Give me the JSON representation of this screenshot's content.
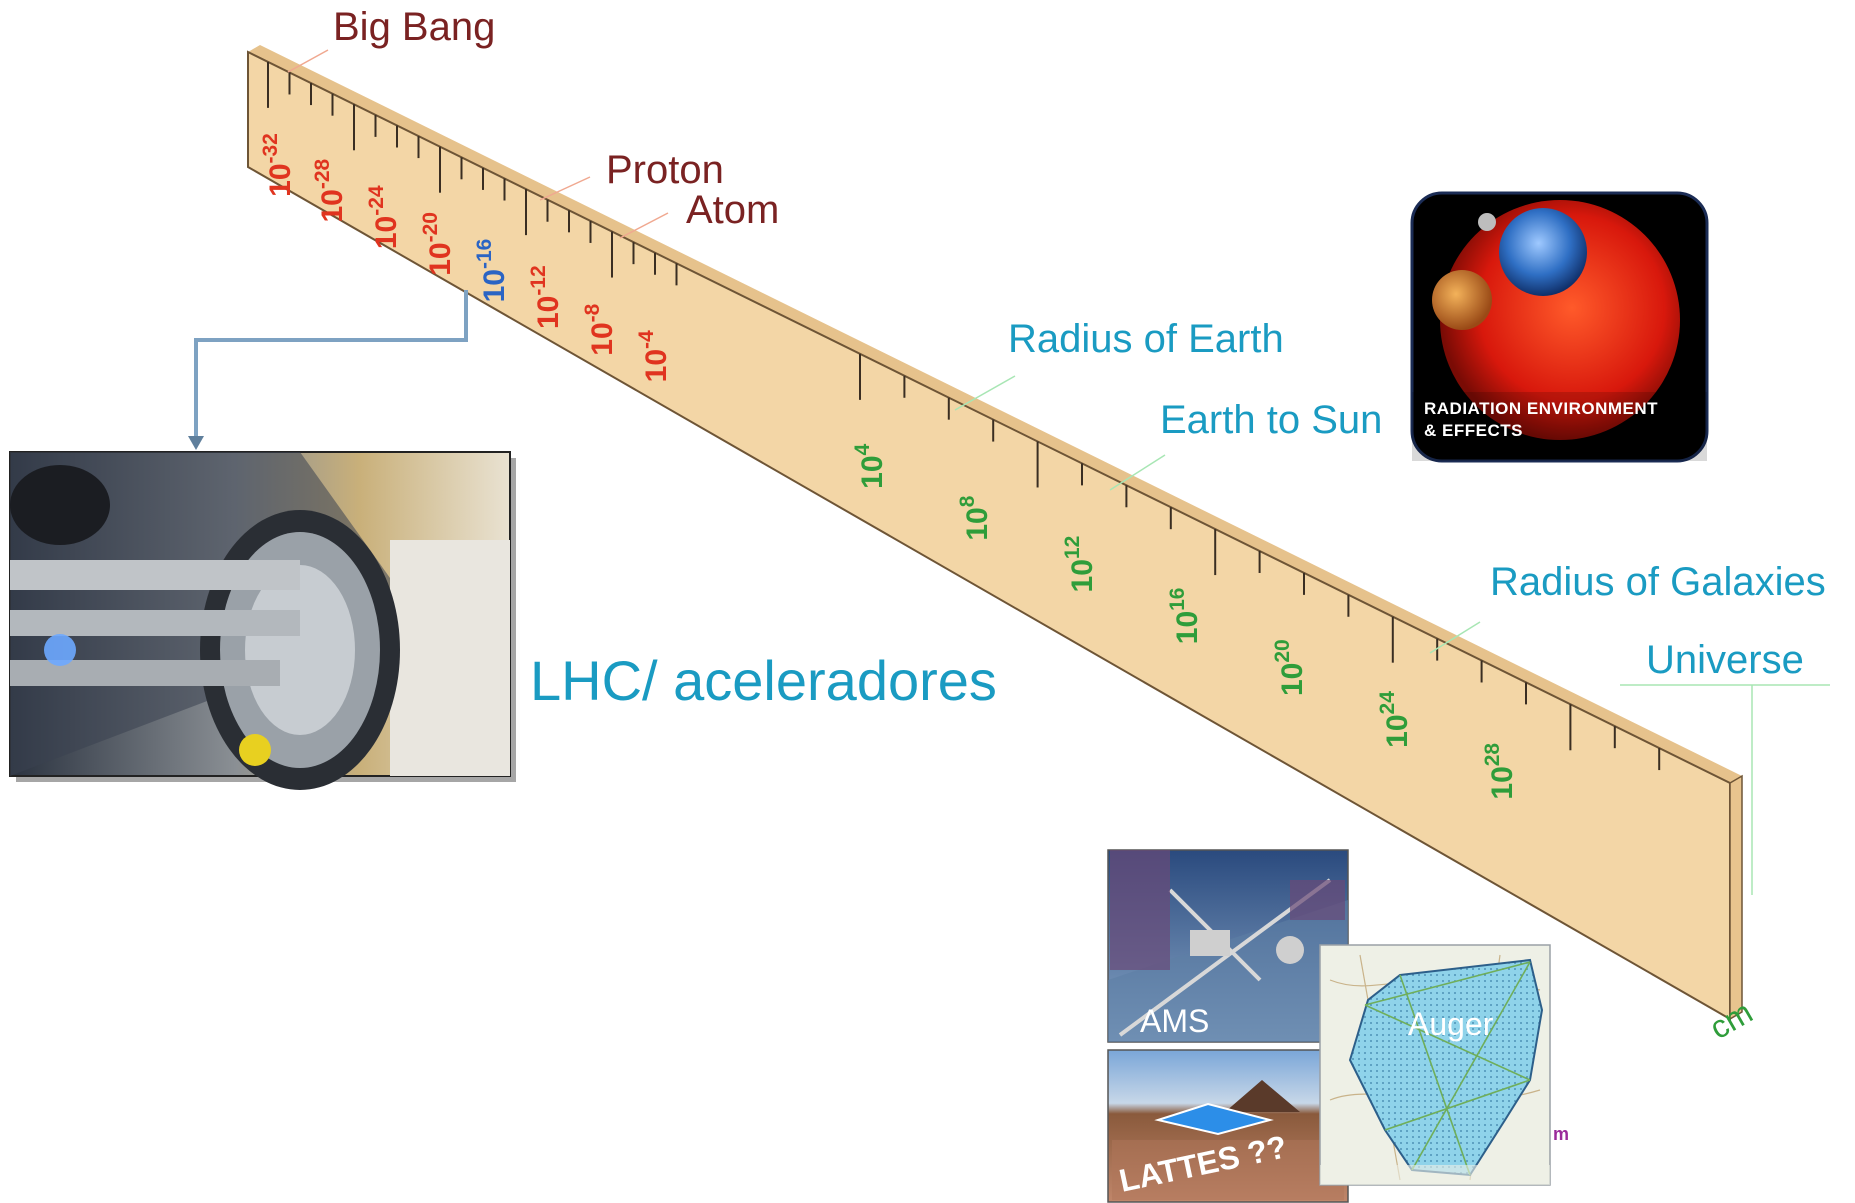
{
  "ruler": {
    "ticks": [
      {
        "base": "10",
        "exp": "-32",
        "color": "red"
      },
      {
        "base": "10",
        "exp": "-28",
        "color": "red"
      },
      {
        "base": "10",
        "exp": "-24",
        "color": "red"
      },
      {
        "base": "10",
        "exp": "-20",
        "color": "red"
      },
      {
        "base": "10",
        "exp": "-16",
        "color": "blue"
      },
      {
        "base": "10",
        "exp": "-12",
        "color": "red"
      },
      {
        "base": "10",
        "exp": "-8",
        "color": "red"
      },
      {
        "base": "10",
        "exp": "-4",
        "color": "red"
      },
      {
        "base": "10",
        "exp": "4",
        "color": "green"
      },
      {
        "base": "10",
        "exp": "8",
        "color": "green"
      },
      {
        "base": "10",
        "exp": "12",
        "color": "green"
      },
      {
        "base": "10",
        "exp": "16",
        "color": "green"
      },
      {
        "base": "10",
        "exp": "20",
        "color": "green"
      },
      {
        "base": "10",
        "exp": "24",
        "color": "green"
      },
      {
        "base": "10",
        "exp": "28",
        "color": "green"
      }
    ],
    "unit": "cm",
    "face_color": "#f3d6a6",
    "edge_color": "#d9b683"
  },
  "annotations": {
    "big_bang": "Big Bang",
    "proton": "Proton",
    "atom": "Atom",
    "radius_earth": "Radius of Earth",
    "earth_sun": "Earth to Sun",
    "radius_galaxies": "Radius of Galaxies",
    "universe": "Universe"
  },
  "lhc": {
    "caption": "LHC/ aceleradores"
  },
  "radiation_badge": {
    "line1": "RADIATION ENVIRONMENT",
    "line2": "& EFFECTS"
  },
  "experiments": {
    "ams": "AMS",
    "auger": "Auger",
    "lattes": "LATTES ??",
    "map_mark": "m"
  },
  "colors": {
    "maroon": "#7a2222",
    "teal": "#1a9bc2",
    "red": "#e0341f",
    "blue": "#2a64c4",
    "green": "#2f9d3a"
  }
}
